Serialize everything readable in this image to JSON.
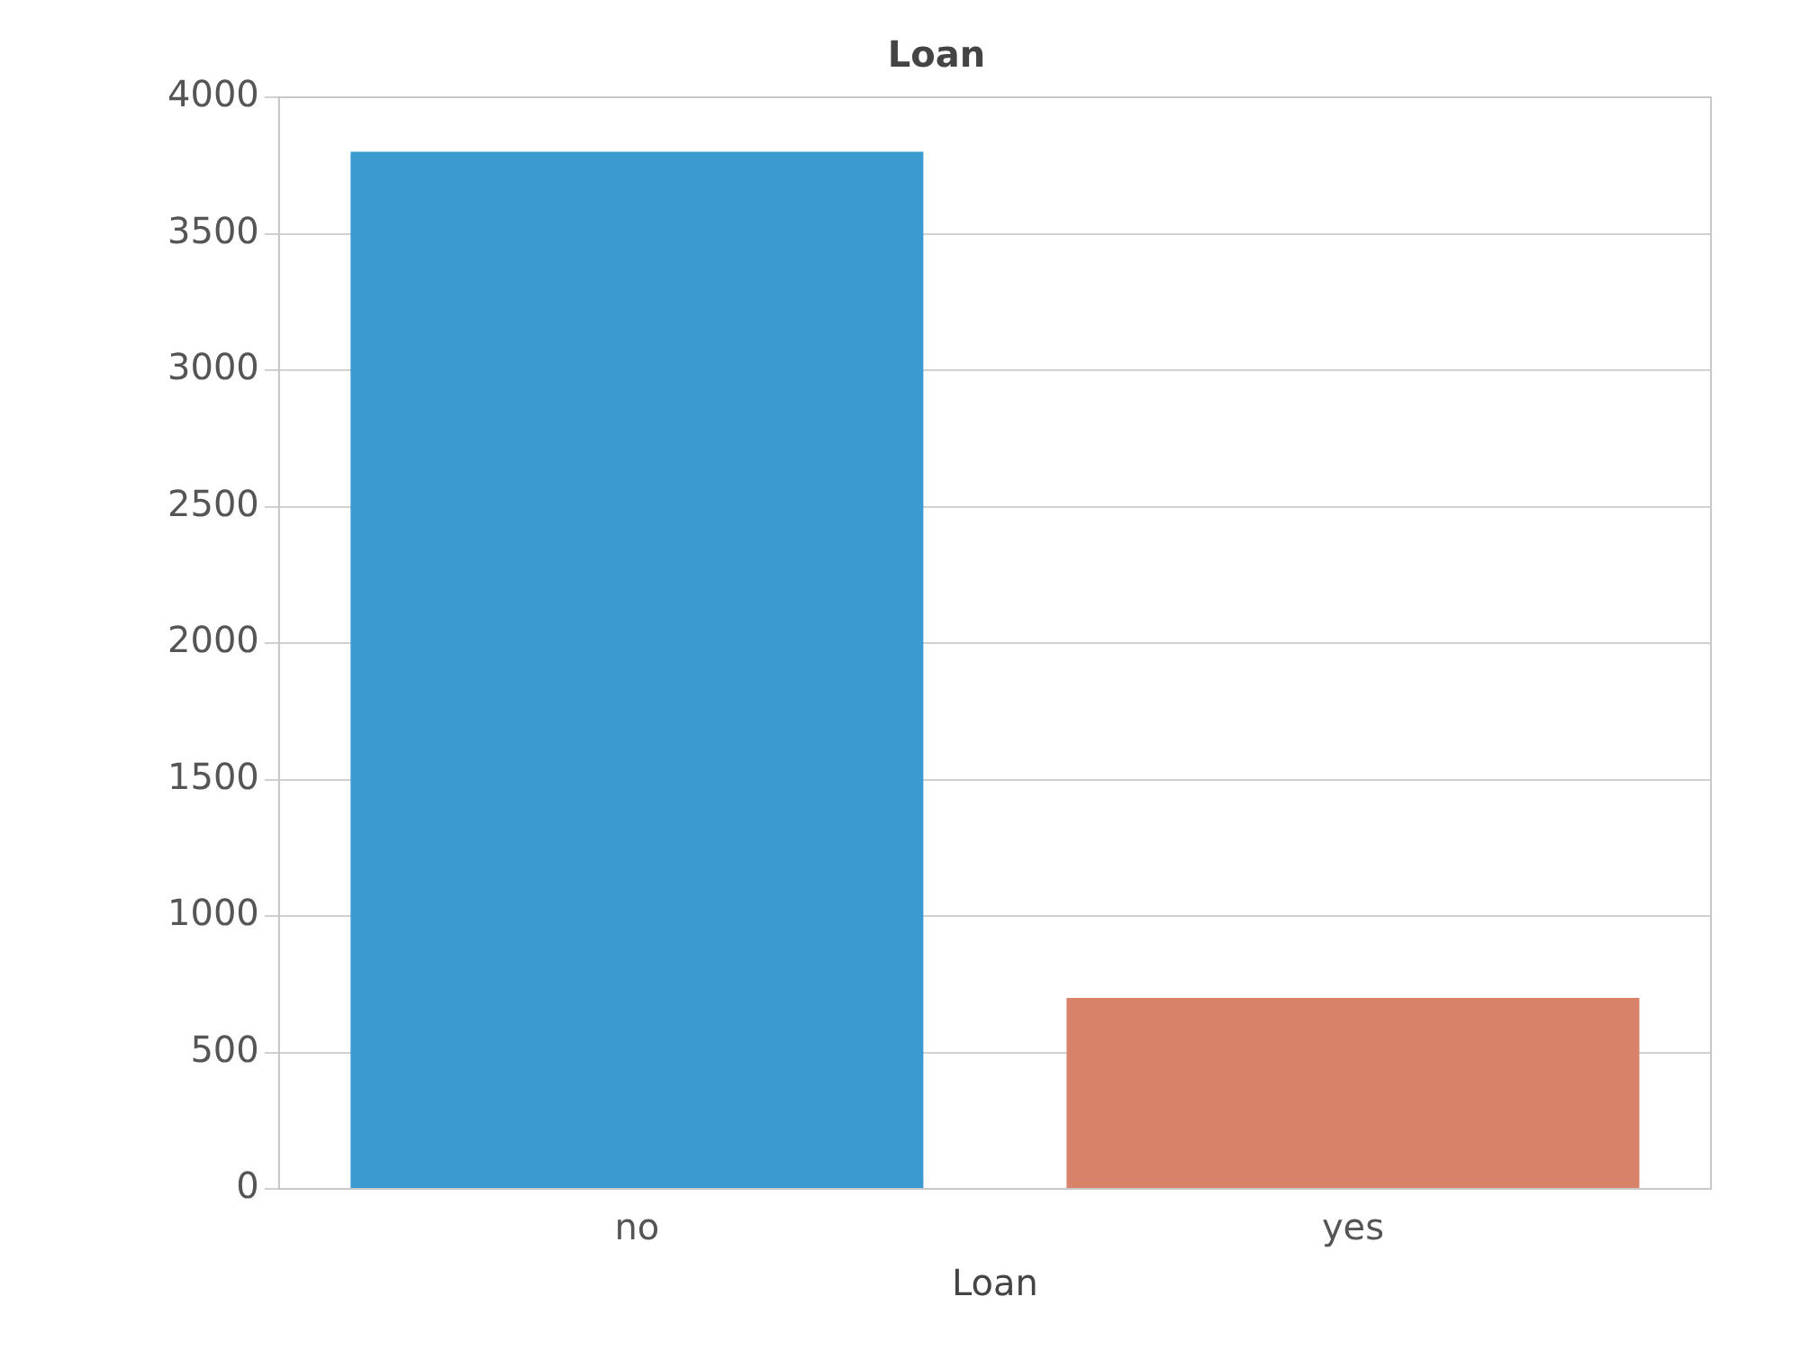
{
  "chart_data": {
    "type": "bar",
    "title": "Loan",
    "xlabel": "Loan",
    "categories": [
      "no",
      "yes"
    ],
    "values": [
      3800,
      700
    ],
    "colors": [
      "#3b9bd0",
      "#d9826a"
    ],
    "ylim": [
      0,
      4000
    ],
    "yticks": [
      0,
      500,
      1000,
      1500,
      2000,
      2500,
      3000,
      3500,
      4000
    ],
    "grid": "y",
    "legend": false
  }
}
